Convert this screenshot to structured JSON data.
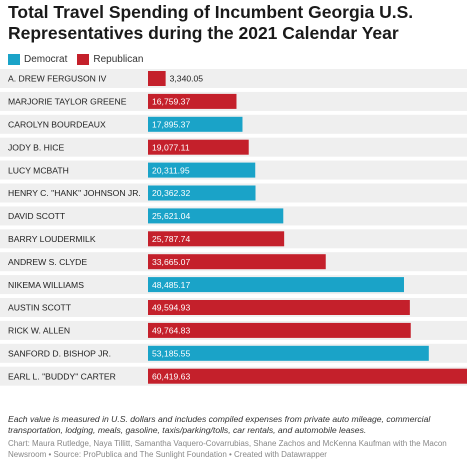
{
  "chart_data": {
    "type": "bar",
    "title": "Total Travel Spending of Incumbent Georgia U.S. Representatives during the 2021 Calendar Year",
    "legend": [
      {
        "name": "Democrat",
        "color": "#1aa3c8"
      },
      {
        "name": "Republican",
        "color": "#c4202b"
      }
    ],
    "categories": [
      "A. DREW FERGUSON IV",
      "MARJORIE TAYLOR GREENE",
      "CAROLYN BOURDEAUX",
      "JODY B. HICE",
      "LUCY MCBATH",
      "HENRY C. \"HANK\" JOHNSON JR.",
      "DAVID SCOTT",
      "BARRY LOUDERMILK",
      "ANDREW S. CLYDE",
      "NIKEMA WILLIAMS",
      "AUSTIN SCOTT",
      "RICK W. ALLEN",
      "SANFORD D. BISHOP JR.",
      "EARL L. \"BUDDY\" CARTER"
    ],
    "values": [
      3340.05,
      16759.37,
      17895.37,
      19077.11,
      20311.95,
      20362.32,
      25621.04,
      25787.74,
      33665.07,
      48485.17,
      49594.93,
      49764.83,
      53185.55,
      60419.63
    ],
    "labels": [
      "3,340.05",
      "16,759.37",
      "17,895.37",
      "19,077.11",
      "20,311.95",
      "20,362.32",
      "25,621.04",
      "25,787.74",
      "33,665.07",
      "48,485.17",
      "49,594.93",
      "49,764.83",
      "53,185.55",
      "60,419.63"
    ],
    "party": [
      "Republican",
      "Republican",
      "Democrat",
      "Republican",
      "Democrat",
      "Democrat",
      "Democrat",
      "Republican",
      "Republican",
      "Democrat",
      "Republican",
      "Republican",
      "Democrat",
      "Republican"
    ],
    "xlim": [
      0,
      60419.63
    ],
    "track_color": "#efefef"
  },
  "note": "Each value is measured in U.S. dollars and includes compiled expenses from private auto mileage, commercial transportation, lodging, meals, gasoline, taxis/parking/tolls, car rentals, and automobile leases.",
  "credits": "Chart: Maura Rutledge, Naya Tillitt, Samantha Vaquero-Covarrubias, Shane Zachos and McKenna Kaufman with the Macon Newsroom • Source: ProPublica and The Sunlight Foundation • Created with Datawrapper"
}
